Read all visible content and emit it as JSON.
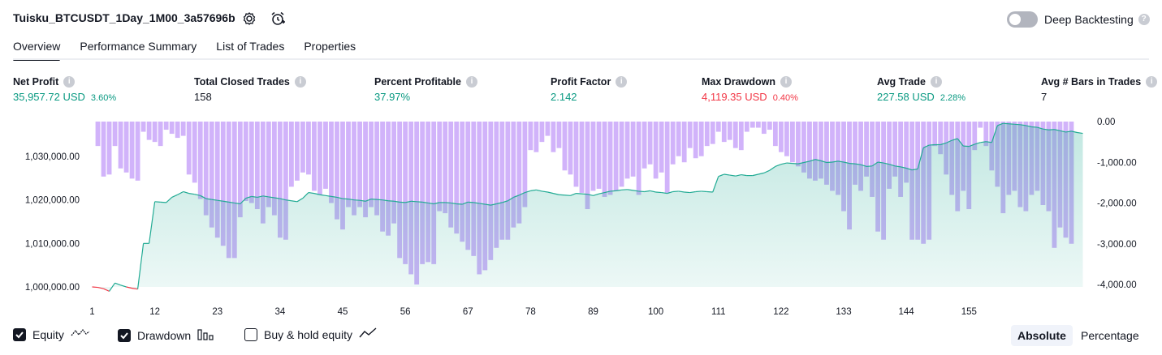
{
  "header": {
    "strategy_name": "Tuisku_BTCUSDT_1Day_1M00_3a57696b",
    "deep_backtesting_label": "Deep Backtesting"
  },
  "tabs": [
    {
      "label": "Overview",
      "active": true
    },
    {
      "label": "Performance Summary",
      "active": false
    },
    {
      "label": "List of Trades",
      "active": false
    },
    {
      "label": "Properties",
      "active": false
    }
  ],
  "metrics": [
    {
      "label": "Net Profit",
      "value": "35,957.72 USD",
      "sub": "3.60%",
      "color": "green"
    },
    {
      "label": "Total Closed Trades",
      "value": "158",
      "sub": "",
      "color": "dark"
    },
    {
      "label": "Percent Profitable",
      "value": "37.97%",
      "sub": "",
      "color": "green"
    },
    {
      "label": "Profit Factor",
      "value": "2.142",
      "sub": "",
      "color": "green"
    },
    {
      "label": "Max Drawdown",
      "value": "4,119.35 USD",
      "sub": "0.40%",
      "color": "red"
    },
    {
      "label": "Avg Trade",
      "value": "227.58 USD",
      "sub": "2.28%",
      "color": "green"
    },
    {
      "label": "Avg # Bars in Trades",
      "value": "7",
      "sub": "",
      "color": "dark"
    }
  ],
  "legend": {
    "equity": "Equity",
    "drawdown": "Drawdown",
    "buy_hold": "Buy & hold equity",
    "absolute": "Absolute",
    "percentage": "Percentage"
  },
  "colors": {
    "equity_line": "#22ab94",
    "equity_line_loss": "#f23645",
    "drawdown_bar": "#d1b3fa",
    "accent_green": "#089981",
    "accent_red": "#f23645"
  },
  "chart_data": {
    "type": "area",
    "x_ticks": [
      "1",
      "12",
      "23",
      "34",
      "45",
      "56",
      "67",
      "78",
      "89",
      "100",
      "111",
      "122",
      "133",
      "144",
      "155"
    ],
    "left_axis_ticks": [
      "1,030,000.00",
      "1,020,000.00",
      "1,010,000.00",
      "1,000,000.00"
    ],
    "right_axis_ticks": [
      "0.00",
      "-1,000.00",
      "-2,000.00",
      "-3,000.00",
      "-4,000.00"
    ],
    "equity_ylim": [
      1000000,
      1038000
    ],
    "drawdown_ylim": [
      -4000,
      0
    ],
    "series": [
      {
        "name": "Equity",
        "axis": "left",
        "values": [
          1000000,
          999900,
          999600,
          999000,
          1000900,
          1000400,
          1000000,
          999700,
          999500,
          1010000,
          1010000,
          1019600,
          1019500,
          1019400,
          1020600,
          1021200,
          1021900,
          1021500,
          1021300,
          1021000,
          1020300,
          1020100,
          1019900,
          1019700,
          1019500,
          1019300,
          1019100,
          1020400,
          1020800,
          1020600,
          1020900,
          1020700,
          1020500,
          1020300,
          1020000,
          1019800,
          1019600,
          1020400,
          1021700,
          1021500,
          1021200,
          1021000,
          1020800,
          1020600,
          1020300,
          1020200,
          1020000,
          1019900,
          1019700,
          1020200,
          1020100,
          1020000,
          1019800,
          1019700,
          1019500,
          1019400,
          1019700,
          1019600,
          1019500,
          1019300,
          1019100,
          1019400,
          1019400,
          1019300,
          1019100,
          1019000,
          1019500,
          1019400,
          1019200,
          1019000,
          1018800,
          1019100,
          1019400,
          1019800,
          1020600,
          1021100,
          1021700,
          1022100,
          1022300,
          1022000,
          1021800,
          1021500,
          1021200,
          1021100,
          1021000,
          1021500,
          1021400,
          1021300,
          1021000,
          1021400,
          1021700,
          1022000,
          1022100,
          1022300,
          1022400,
          1022200,
          1022000,
          1021900,
          1022100,
          1021800,
          1021700,
          1021500,
          1021900,
          1022000,
          1021800,
          1021700,
          1021900,
          1022000,
          1021900,
          1021800,
          1025400,
          1025900,
          1025700,
          1025500,
          1025800,
          1025600,
          1025600,
          1025900,
          1026200,
          1026800,
          1027700,
          1028200,
          1028500,
          1028400,
          1028300,
          1028600,
          1028900,
          1029300,
          1029000,
          1028600,
          1028700,
          1028900,
          1028700,
          1028400,
          1028300,
          1028100,
          1027700,
          1027800,
          1028700,
          1028500,
          1028200,
          1027800,
          1027600,
          1027300,
          1026900,
          1027100,
          1032000,
          1032600,
          1032700,
          1032700,
          1033100,
          1033700,
          1034100,
          1032400,
          1032300,
          1032800,
          1033200,
          1033400,
          1033200,
          1037100,
          1037600,
          1037500,
          1037400,
          1037300,
          1037100,
          1036800,
          1036700,
          1036300,
          1036100,
          1036200,
          1035900,
          1035600,
          1035800,
          1035500,
          1035300
        ]
      },
      {
        "name": "Drawdown",
        "axis": "right",
        "values": [
          0,
          -600,
          -1350,
          -1300,
          -600,
          -1150,
          -1250,
          -1400,
          -1450,
          -250,
          -450,
          -500,
          -600,
          -200,
          -300,
          -400,
          -350,
          -1300,
          -1500,
          -1900,
          -2300,
          -2600,
          -2850,
          -3050,
          -3350,
          -3350,
          -2350,
          -1950,
          -2000,
          -2150,
          -2500,
          -2100,
          -2300,
          -2850,
          -2900,
          -1600,
          -1450,
          -1250,
          -1300,
          -1700,
          -1800,
          -1650,
          -2000,
          -2400,
          -2650,
          -2100,
          -2300,
          -2100,
          -2350,
          -2100,
          -2300,
          -2700,
          -2800,
          -2500,
          -3350,
          -3500,
          -3750,
          -4000,
          -3500,
          -3450,
          -3500,
          -2200,
          -2250,
          -2600,
          -2750,
          -2950,
          -3150,
          -3300,
          -3750,
          -3650,
          -3400,
          -3100,
          -2900,
          -2900,
          -2600,
          -2500,
          -2100,
          -700,
          -750,
          -500,
          -350,
          -750,
          -650,
          -1200,
          -1300,
          -1600,
          -1750,
          -2150,
          -1700,
          -1650,
          -1850,
          -1800,
          -1700,
          -1600,
          -1400,
          -1350,
          -1800,
          -1150,
          -1050,
          -1400,
          -1250,
          -1750,
          -1050,
          -850,
          -1000,
          -650,
          -900,
          -850,
          -600,
          -550,
          -250,
          -500,
          -450,
          -650,
          -700,
          -250,
          -150,
          -150,
          -300,
          -200,
          -600,
          -750,
          -850,
          -1000,
          -1100,
          -1250,
          -1400,
          -1450,
          -1400,
          -1550,
          -1700,
          -1800,
          -2200,
          -2650,
          -1550,
          -1700,
          -1350,
          -1850,
          -2700,
          -2900,
          -1650,
          -1350,
          -1850,
          -1500,
          -2900,
          -2900,
          -3000,
          -2900,
          -600,
          -800,
          -1300,
          -1800,
          -2200,
          -1700,
          -2150,
          -700,
          -150,
          -600,
          -1200,
          -1600,
          -2250,
          -1800,
          -1700,
          -2100,
          -2200,
          -1800,
          -1700,
          -2050,
          -2200,
          -3100,
          -2600,
          -2850,
          -3000
        ]
      }
    ]
  }
}
